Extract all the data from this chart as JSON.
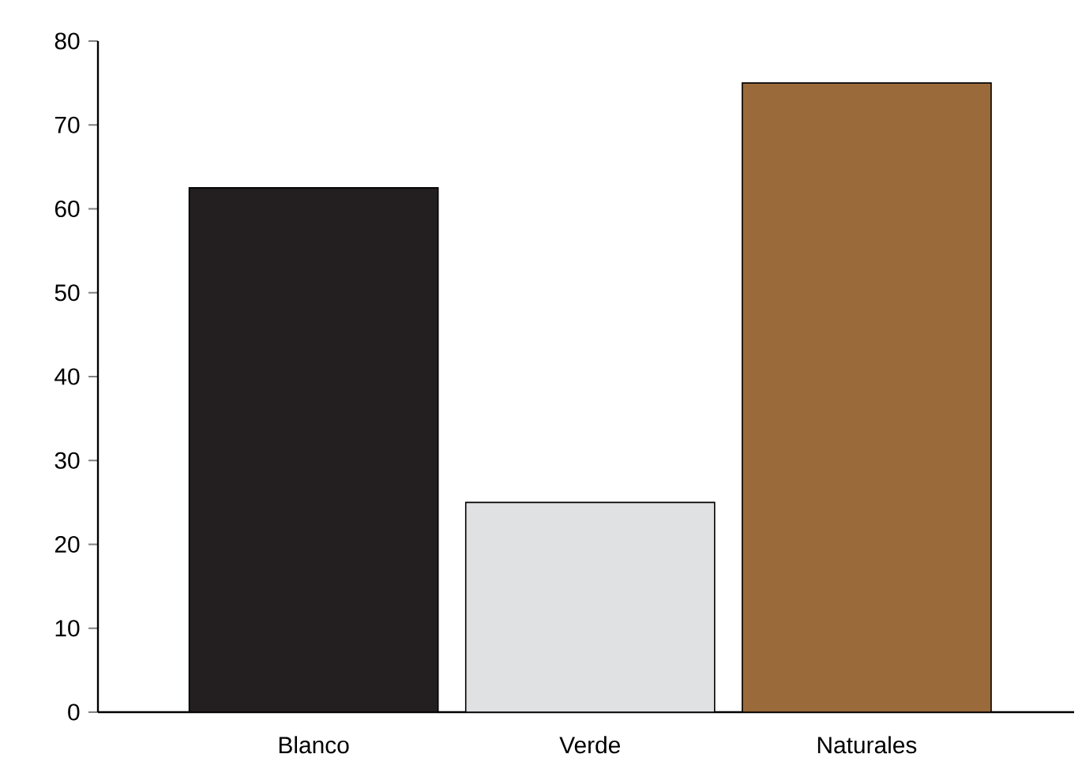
{
  "chart_data": {
    "type": "bar",
    "categories": [
      "Blanco",
      "Verde",
      "Naturales"
    ],
    "values": [
      62.5,
      25,
      75
    ],
    "colors": [
      "#231f20",
      "#e0e1e3",
      "#9a6a3a"
    ],
    "ylim": [
      0,
      80
    ],
    "yticks": [
      0,
      10,
      20,
      30,
      40,
      50,
      60,
      70,
      80
    ],
    "grid": false
  }
}
